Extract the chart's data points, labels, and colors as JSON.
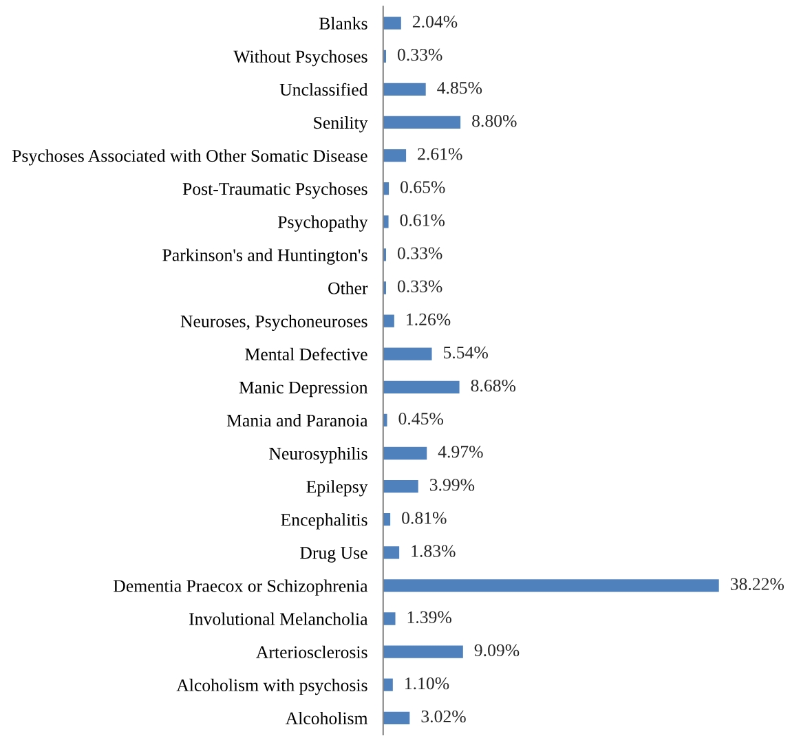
{
  "chart_data": {
    "type": "bar",
    "orientation": "horizontal",
    "categories": [
      "Blanks",
      "Without Psychoses",
      "Unclassified",
      "Senility",
      "Psychoses Associated with Other Somatic Disease",
      "Post-Traumatic Psychoses",
      "Psychopathy",
      "Parkinson's and Huntington's",
      "Other",
      "Neuroses, Psychoneuroses",
      "Mental Defective",
      "Manic Depression",
      "Mania and Paranoia",
      "Neurosyphilis",
      "Epilepsy",
      "Encephalitis",
      "Drug Use",
      "Dementia Praecox or Schizophrenia",
      "Involutional Melancholia",
      "Arteriosclerosis",
      "Alcoholism with psychosis",
      "Alcoholism"
    ],
    "values": [
      2.04,
      0.33,
      4.85,
      8.8,
      2.61,
      0.65,
      0.61,
      0.33,
      0.33,
      1.26,
      5.54,
      8.68,
      0.45,
      4.97,
      3.99,
      0.81,
      1.83,
      38.22,
      1.39,
      9.09,
      1.1,
      3.02
    ],
    "value_labels": [
      "2.04%",
      "0.33%",
      "4.85%",
      "8.80%",
      "2.61%",
      "0.65%",
      "0.61%",
      "0.33%",
      "0.33%",
      "1.26%",
      "5.54%",
      "8.68%",
      "0.45%",
      "4.97%",
      "3.99%",
      "0.81%",
      "1.83%",
      "38.22%",
      "1.39%",
      "9.09%",
      "1.10%",
      "3.02%"
    ],
    "color": "#4f81bd",
    "tick_labels": "y",
    "grid": false
  }
}
